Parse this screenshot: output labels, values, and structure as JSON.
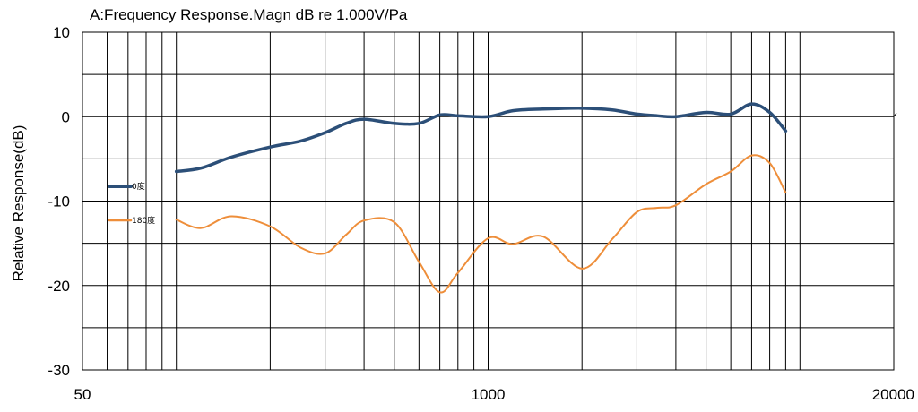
{
  "chart_data": {
    "type": "line",
    "title": "A:Frequency Response.Magn dB re 1.000V/Pa",
    "ylabel": "Relative Response(dB)",
    "xlabel": "",
    "x_scale": "log",
    "xlim": [
      50,
      20000
    ],
    "ylim": [
      -30,
      10
    ],
    "x_tick_labels": [
      "50",
      "1000",
      "20000"
    ],
    "x_ticks": [
      50,
      1000,
      20000
    ],
    "y_ticks": [
      10,
      0,
      -10,
      -20,
      -30
    ],
    "y_tick_labels": [
      "10",
      "0",
      "-10",
      "-20",
      "-30"
    ],
    "grid": true,
    "legend_position": "left",
    "series": [
      {
        "name": "0度",
        "color": "#2c4f78",
        "x": [
          100,
          120,
          150,
          200,
          250,
          300,
          350,
          400,
          500,
          600,
          700,
          800,
          1000,
          1200,
          1500,
          2000,
          2500,
          3000,
          3500,
          4000,
          5000,
          6000,
          7000,
          8000,
          9000
        ],
        "y": [
          -6.5,
          -6.1,
          -4.8,
          -3.6,
          -2.9,
          -1.9,
          -0.8,
          -0.3,
          -0.8,
          -0.8,
          0.2,
          0.1,
          0.0,
          0.7,
          0.9,
          1.0,
          0.8,
          0.3,
          0.1,
          0.0,
          0.5,
          0.3,
          1.5,
          0.5,
          -1.7
        ]
      },
      {
        "name": "180度",
        "color": "#ee8e3a",
        "x": [
          100,
          120,
          150,
          200,
          250,
          300,
          350,
          400,
          500,
          600,
          700,
          800,
          1000,
          1200,
          1500,
          2000,
          2500,
          3000,
          3500,
          4000,
          5000,
          6000,
          7000,
          8000,
          9000
        ],
        "y": [
          -12.2,
          -13.2,
          -11.8,
          -13.0,
          -15.5,
          -16.2,
          -14.0,
          -12.3,
          -12.5,
          -17.2,
          -20.8,
          -18.5,
          -14.4,
          -15.1,
          -14.2,
          -18.0,
          -14.5,
          -11.3,
          -10.8,
          -10.5,
          -8.0,
          -6.5,
          -4.6,
          -5.5,
          -9.0
        ]
      }
    ]
  }
}
